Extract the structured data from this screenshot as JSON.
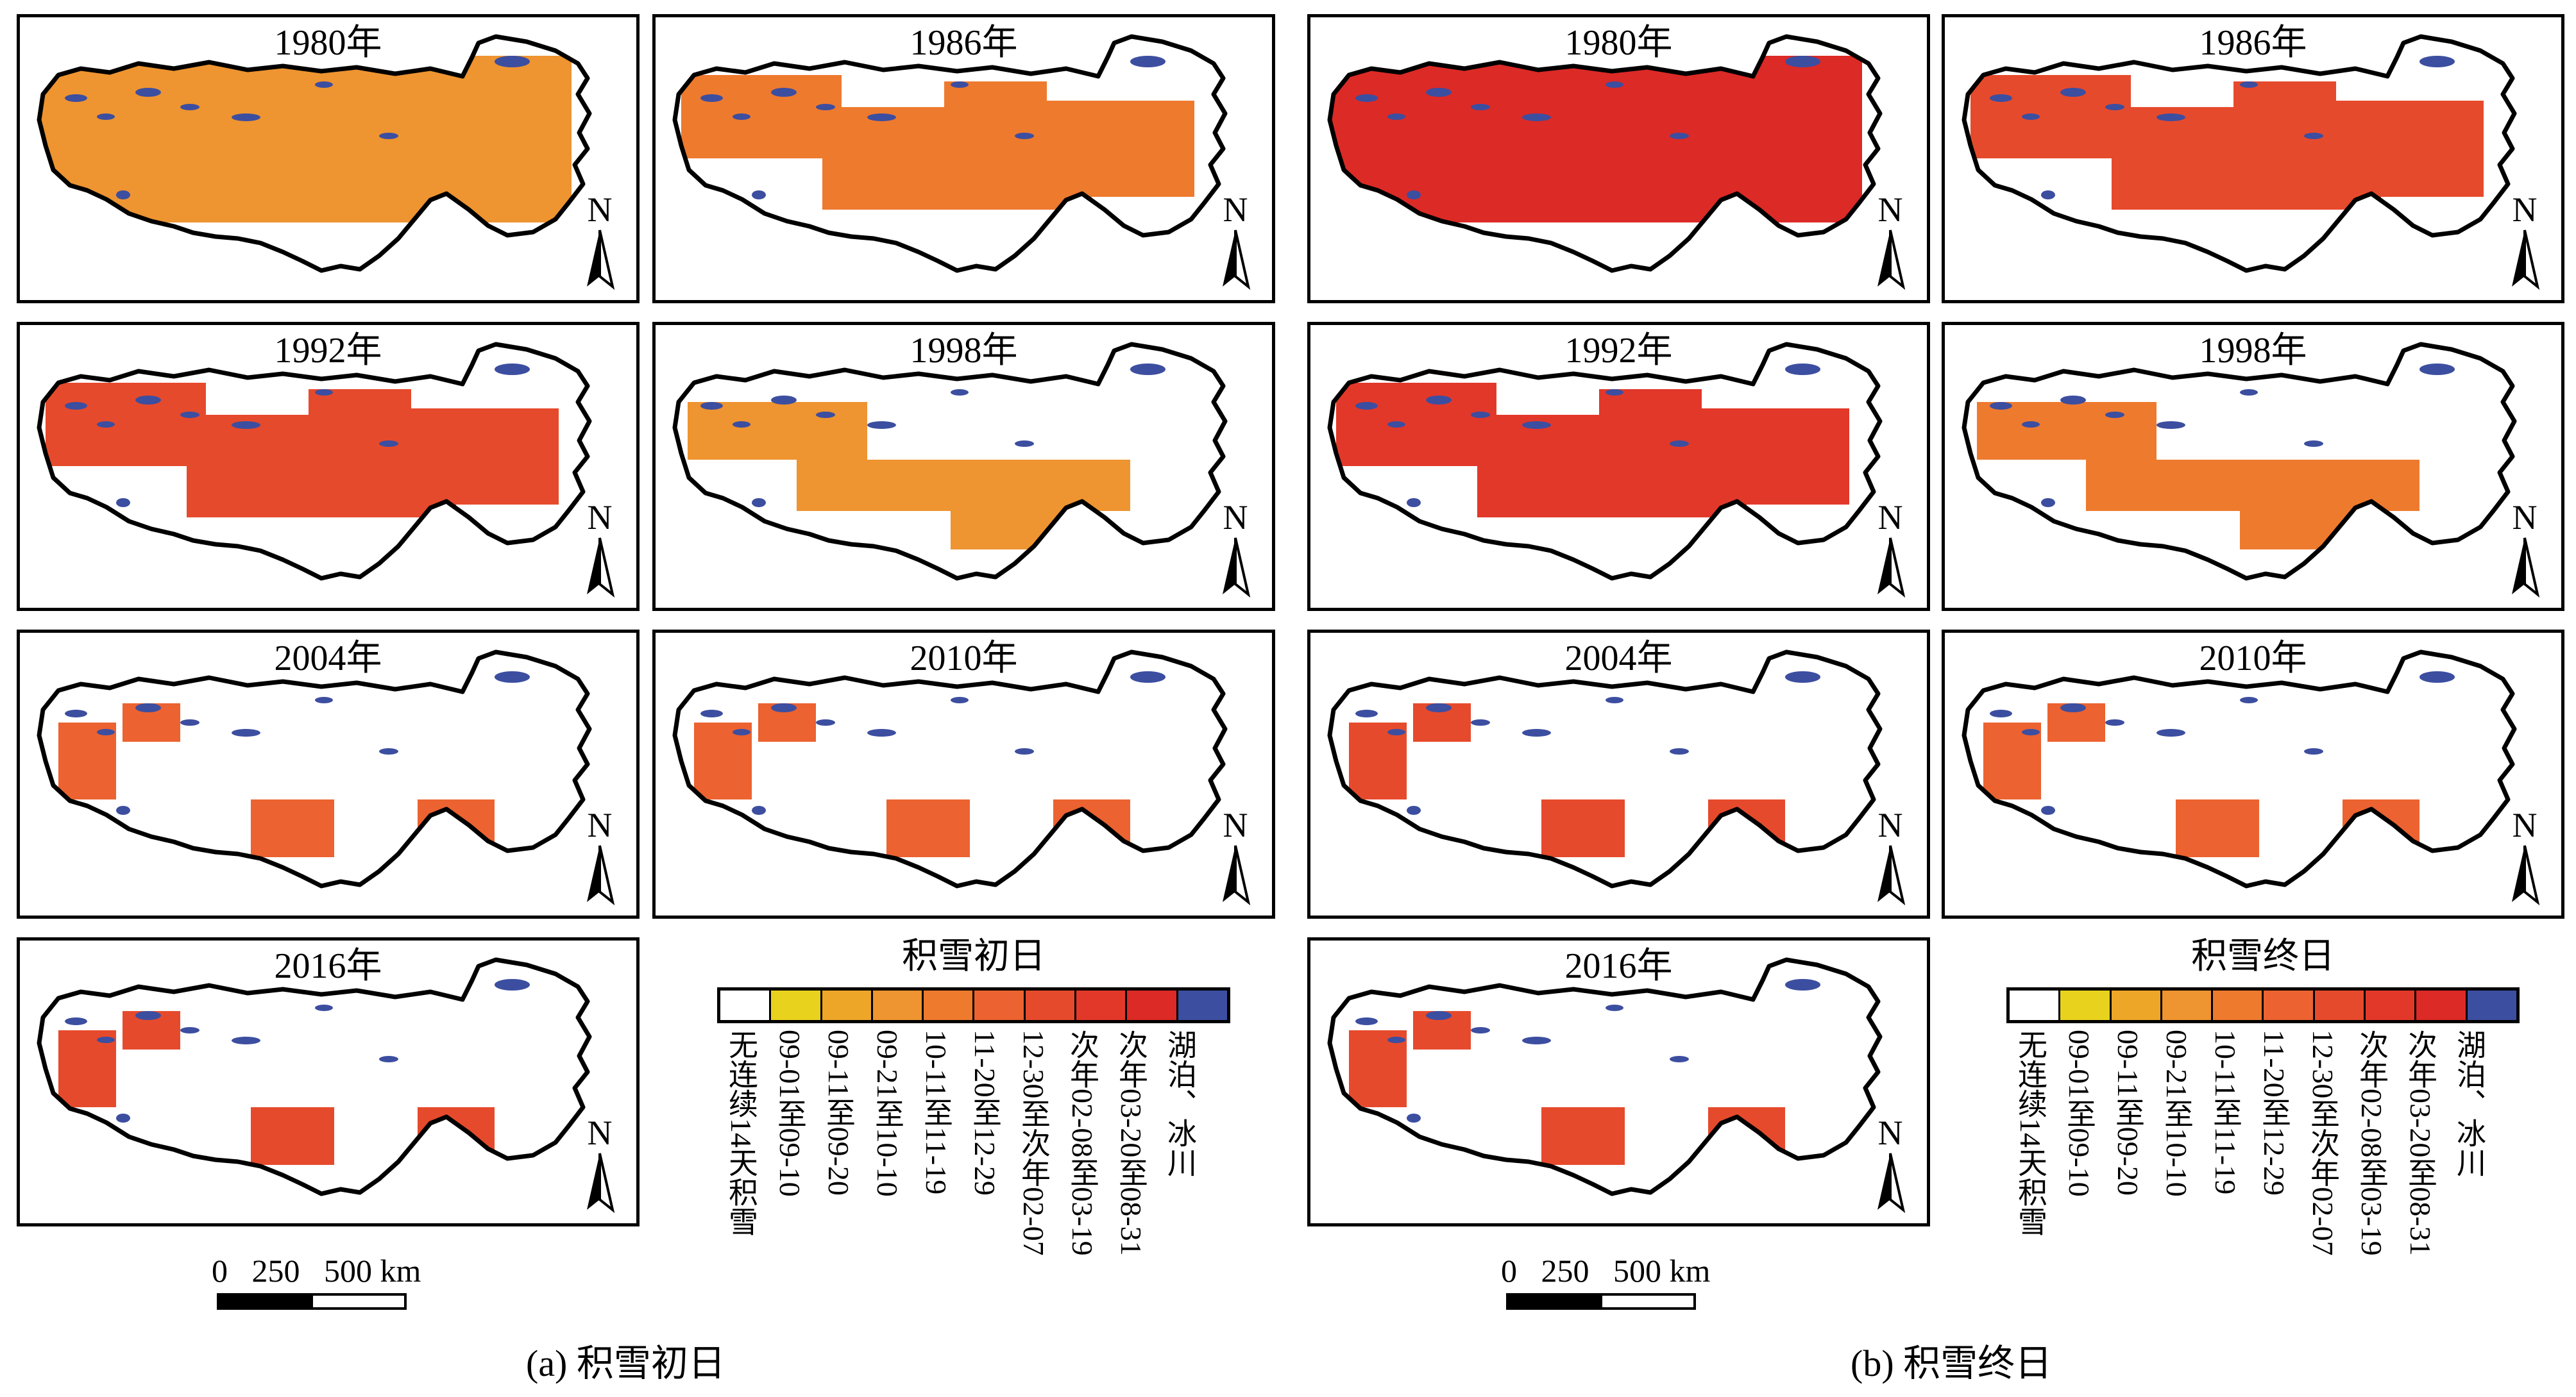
{
  "figure": {
    "panel_a": {
      "caption": "(a) 积雪初日",
      "legend_title": "积雪初日",
      "years": [
        "1980年",
        "1986年",
        "1992年",
        "1998年",
        "2004年",
        "2010年",
        "2016年"
      ]
    },
    "panel_b": {
      "caption": "(b) 积雪终日",
      "legend_title": "积雪终日",
      "years": [
        "1980年",
        "1986年",
        "1992年",
        "1998年",
        "2004年",
        "2010年",
        "2016年"
      ]
    },
    "north_label": "N",
    "scale": {
      "labels": "0   250   500 km"
    }
  },
  "legend": {
    "classes": [
      {
        "label": "无连续14天积雪",
        "color": "#ffffff"
      },
      {
        "label": "09-01至09-10",
        "color": "#e8d21e"
      },
      {
        "label": "09-11至09-20",
        "color": "#eda628"
      },
      {
        "label": "09-21至10-10",
        "color": "#ee9430"
      },
      {
        "label": "10-11至11-19",
        "color": "#ee7a2e"
      },
      {
        "label": "11-20至12-29",
        "color": "#ec6230"
      },
      {
        "label": "12-30至次年02-07",
        "color": "#e64a2c"
      },
      {
        "label": "次年02-08至03-19",
        "color": "#e2382a"
      },
      {
        "label": "次年03-20至08-31",
        "color": "#dc2a26"
      },
      {
        "label": "湖泊、冰川",
        "color": "#3c4ea0"
      }
    ]
  },
  "maps": {
    "a": [
      {
        "year": "1980年",
        "snow_color": "#ee9430",
        "coverage": "high"
      },
      {
        "year": "1986年",
        "snow_color": "#ee7a2e",
        "coverage": "medium"
      },
      {
        "year": "1992年",
        "snow_color": "#e64a2c",
        "coverage": "medium"
      },
      {
        "year": "1998年",
        "snow_color": "#ee9430",
        "coverage": "low"
      },
      {
        "year": "2004年",
        "snow_color": "#ec6230",
        "coverage": "sparse"
      },
      {
        "year": "2010年",
        "snow_color": "#ec6230",
        "coverage": "sparse"
      },
      {
        "year": "2016年",
        "snow_color": "#e64a2c",
        "coverage": "sparse"
      }
    ],
    "b": [
      {
        "year": "1980年",
        "snow_color": "#dc2a26",
        "coverage": "high"
      },
      {
        "year": "1986年",
        "snow_color": "#e64a2c",
        "coverage": "medium"
      },
      {
        "year": "1992年",
        "snow_color": "#e2382a",
        "coverage": "medium"
      },
      {
        "year": "1998年",
        "snow_color": "#ee7a2e",
        "coverage": "low"
      },
      {
        "year": "2004年",
        "snow_color": "#e64a2c",
        "coverage": "sparse"
      },
      {
        "year": "2010年",
        "snow_color": "#ec6230",
        "coverage": "sparse"
      },
      {
        "year": "2016年",
        "snow_color": "#e64a2c",
        "coverage": "sparse"
      }
    ]
  }
}
